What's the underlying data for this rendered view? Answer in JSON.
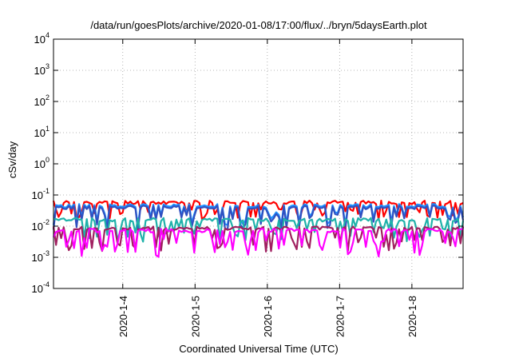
{
  "chart_data": {
    "type": "line",
    "title": "/data/run/goesPlots/archive/2020-01-08/17:00/flux/../bryn/5daysEarth.plot",
    "xlabel": "Coordinated Universal Time (UTC)",
    "ylabel": "cSv/day",
    "yscale": "log",
    "ylim": [
      0.0001,
      10000
    ],
    "xlim": [
      "2020-01-03T01:00",
      "2020-01-08T17:00"
    ],
    "grid": true,
    "y_ticks": [
      {
        "base": "10",
        "exp": "-4",
        "value": 0.0001
      },
      {
        "base": "10",
        "exp": "-3",
        "value": 0.001
      },
      {
        "base": "10",
        "exp": "-2",
        "value": 0.01
      },
      {
        "base": "10",
        "exp": "-1",
        "value": 0.1
      },
      {
        "base": "10",
        "exp": "0",
        "value": 1
      },
      {
        "base": "10",
        "exp": "1",
        "value": 10
      },
      {
        "base": "10",
        "exp": "2",
        "value": 100
      },
      {
        "base": "10",
        "exp": "3",
        "value": 1000
      },
      {
        "base": "10",
        "exp": "4",
        "value": 10000
      }
    ],
    "x_ticks": [
      {
        "label": "2020-1-4",
        "value": "2020-01-04T00:00"
      },
      {
        "label": "2020-1-5",
        "value": "2020-01-05T00:00"
      },
      {
        "label": "2020-1-6",
        "value": "2020-01-06T00:00"
      },
      {
        "label": "2020-1-7",
        "value": "2020-01-07T00:00"
      },
      {
        "label": "2020-1-8",
        "value": "2020-01-08T00:00"
      }
    ],
    "series": [
      {
        "color": "#ff0000",
        "base": 0.058,
        "amp": 0.35,
        "seed": 11
      },
      {
        "color": "#1e90ff",
        "base": 0.045,
        "amp": 0.45,
        "seed": 23
      },
      {
        "color": "#3050c0",
        "base": 0.04,
        "amp": 0.55,
        "seed": 23
      },
      {
        "color": "#20b2aa",
        "base": 0.016,
        "amp": 0.55,
        "seed": 37
      },
      {
        "color": "#a02060",
        "base": 0.0085,
        "amp": 0.6,
        "seed": 41
      },
      {
        "color": "#ff00ff",
        "base": 0.0072,
        "amp": 0.65,
        "seed": 53
      }
    ]
  }
}
